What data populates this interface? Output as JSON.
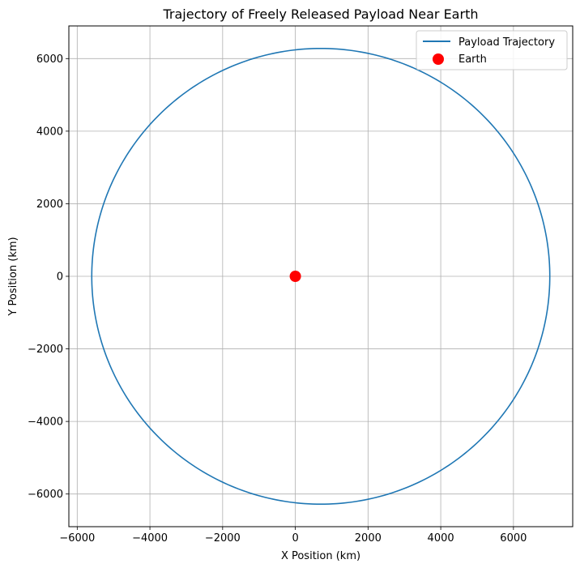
{
  "chart_data": {
    "type": "line",
    "title": "Trajectory of Freely Released Payload Near Earth",
    "xlabel": "X Position (km)",
    "ylabel": "Y Position (km)",
    "xlim": [
      -6230,
      7630
    ],
    "ylim": [
      -6900,
      6900
    ],
    "xticks": [
      -6000,
      -4000,
      -2000,
      0,
      2000,
      4000,
      6000
    ],
    "yticks": [
      -6000,
      -4000,
      -2000,
      0,
      2000,
      4000,
      6000
    ],
    "xtick_labels": [
      "−6000",
      "−4000",
      "−2000",
      "0",
      "2000",
      "4000",
      "6000"
    ],
    "ytick_labels": [
      "−6000",
      "−4000",
      "−2000",
      "0",
      "2000",
      "4000",
      "6000"
    ],
    "grid": true,
    "legend_position": "top-right",
    "series": [
      {
        "name": "Payload Trajectory",
        "kind": "line",
        "color": "#1f77b4",
        "shape": "ellipse",
        "center": [
          700,
          0
        ],
        "semi_axis_x": 6300,
        "semi_axis_y": 6280
      },
      {
        "name": "Earth",
        "kind": "scatter",
        "color": "#ff0000",
        "points": [
          [
            0,
            0
          ]
        ]
      }
    ]
  }
}
